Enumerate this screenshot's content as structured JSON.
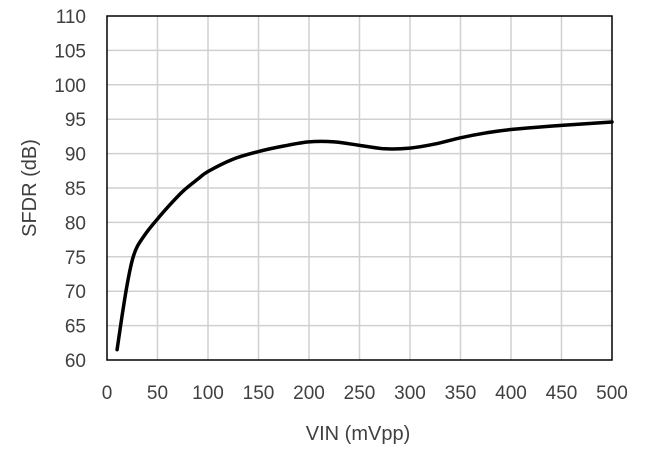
{
  "chart_data": {
    "type": "line",
    "title": "",
    "xlabel": "VIN (mVpp)",
    "ylabel": "SFDR (dB)",
    "xlim": [
      0,
      500
    ],
    "ylim": [
      60,
      110
    ],
    "x_ticks": [
      0,
      50,
      100,
      150,
      200,
      250,
      300,
      350,
      400,
      450,
      500
    ],
    "y_ticks": [
      60,
      65,
      70,
      75,
      80,
      85,
      90,
      95,
      100,
      105,
      110
    ],
    "grid": true,
    "legend": "none",
    "series": [
      {
        "color": "#000000",
        "x": [
          10,
          15,
          20,
          25,
          30,
          40,
          50,
          60,
          75,
          90,
          100,
          125,
          150,
          175,
          200,
          225,
          250,
          275,
          300,
          325,
          350,
          375,
          400,
          450,
          500
        ],
        "y": [
          61.5,
          66.5,
          71.0,
          74.5,
          76.5,
          78.7,
          80.5,
          82.2,
          84.5,
          86.3,
          87.4,
          89.2,
          90.3,
          91.1,
          91.7,
          91.7,
          91.2,
          90.7,
          90.8,
          91.4,
          92.3,
          93.0,
          93.5,
          94.1,
          94.6
        ]
      }
    ]
  }
}
